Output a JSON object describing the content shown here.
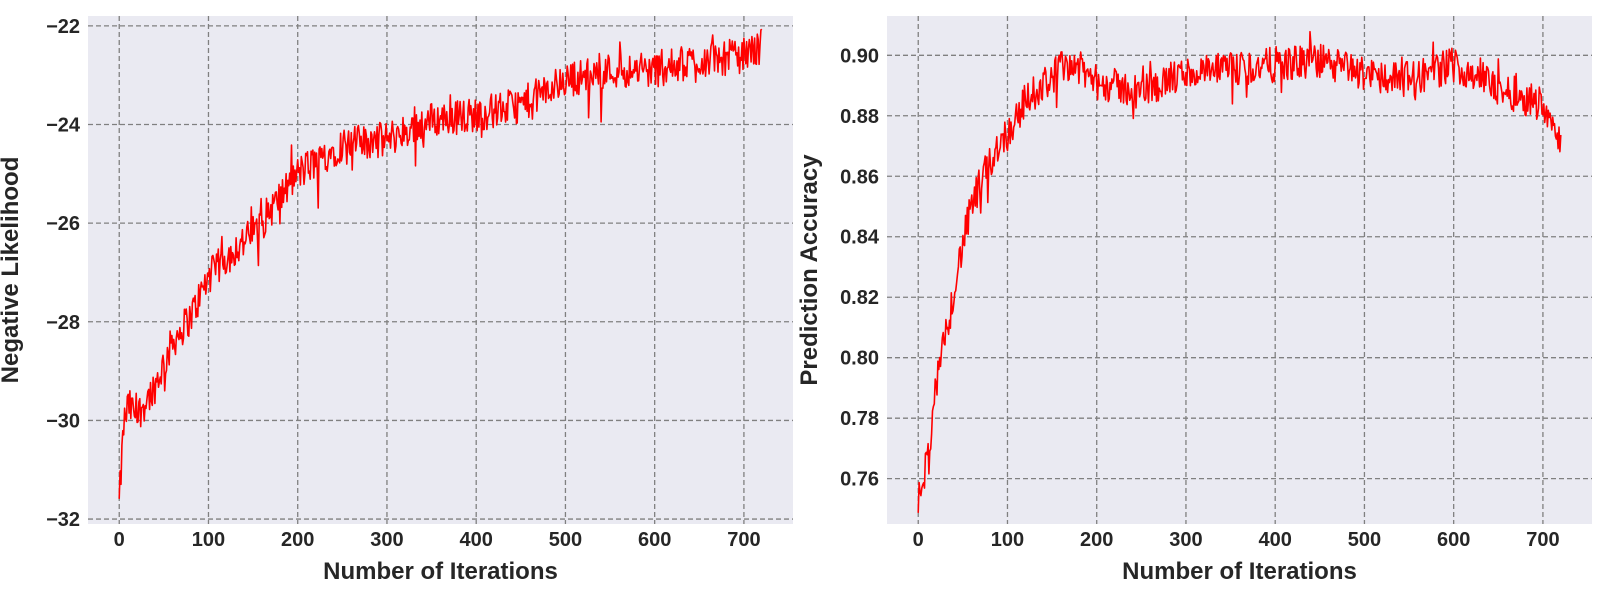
{
  "colors": {
    "plot_background": "#eaeaf2",
    "grid": "#808080",
    "line": "#ff0000",
    "text": "#262626"
  },
  "chart_data": [
    {
      "type": "line",
      "title": "",
      "xlabel": "Number of Iterations",
      "ylabel": "Negative Likelihood",
      "xlim": [
        -35,
        755
      ],
      "ylim": [
        -32.1,
        -21.8
      ],
      "xticks": [
        0,
        100,
        200,
        300,
        400,
        500,
        600,
        700
      ],
      "yticks": [
        -32,
        -30,
        -28,
        -26,
        -24,
        -22
      ],
      "ytick_labels": [
        "−32",
        "−30",
        "−28",
        "−26",
        "−24",
        "−22"
      ],
      "grid": true,
      "x_range": [
        0,
        720
      ],
      "series": [
        {
          "x": [
            0,
            5,
            10,
            20,
            40,
            60,
            80,
            100,
            120,
            150,
            200,
            250,
            300,
            350,
            400,
            450,
            500,
            550,
            600,
            650,
            700,
            720
          ],
          "values": [
            -31.7,
            -30.1,
            -29.7,
            -29.9,
            -29.3,
            -28.4,
            -27.9,
            -27.1,
            -26.7,
            -26.2,
            -25.0,
            -24.4,
            -24.3,
            -23.9,
            -23.8,
            -23.6,
            -23.1,
            -22.9,
            -22.9,
            -22.7,
            -22.6,
            -22.4
          ]
        }
      ]
    },
    {
      "type": "line",
      "title": "",
      "xlabel": "Number of Iterations",
      "ylabel": "Prediction Accuracy",
      "xlim": [
        -35,
        755
      ],
      "ylim": [
        0.745,
        0.913
      ],
      "xticks": [
        0,
        100,
        200,
        300,
        400,
        500,
        600,
        700
      ],
      "yticks": [
        0.76,
        0.78,
        0.8,
        0.82,
        0.84,
        0.86,
        0.88,
        0.9
      ],
      "ytick_labels": [
        "0.76",
        "0.78",
        "0.80",
        "0.82",
        "0.84",
        "0.86",
        "0.88",
        "0.90"
      ],
      "grid": true,
      "x_range": [
        0,
        720
      ],
      "series": [
        {
          "x": [
            0,
            5,
            10,
            20,
            30,
            40,
            50,
            60,
            70,
            80,
            90,
            100,
            120,
            150,
            170,
            200,
            250,
            300,
            350,
            400,
            450,
            500,
            550,
            600,
            630,
            650,
            700,
            720
          ],
          "values": [
            0.752,
            0.76,
            0.766,
            0.79,
            0.806,
            0.822,
            0.838,
            0.85,
            0.858,
            0.864,
            0.871,
            0.874,
            0.885,
            0.893,
            0.898,
            0.891,
            0.888,
            0.894,
            0.895,
            0.897,
            0.898,
            0.894,
            0.892,
            0.897,
            0.893,
            0.889,
            0.884,
            0.873
          ]
        }
      ]
    }
  ]
}
